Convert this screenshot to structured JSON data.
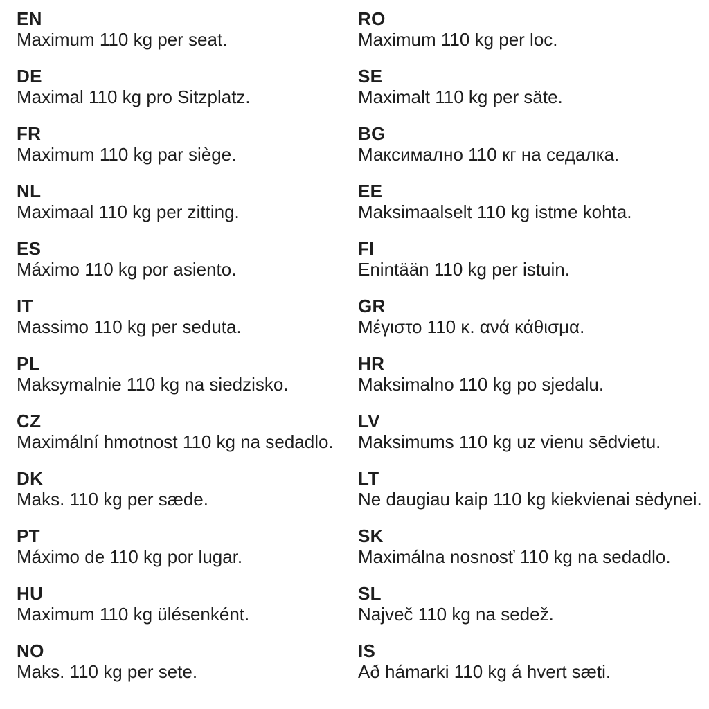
{
  "page": {
    "background_color": "#ffffff",
    "text_color": "#1e1e1e",
    "description": "Multilingual weight-limit notice sheet"
  },
  "entries": {
    "left": [
      {
        "code": "EN",
        "text": "Maximum 110 kg per seat."
      },
      {
        "code": "DE",
        "text": "Maximal 110 kg pro Sitzplatz."
      },
      {
        "code": "FR",
        "text": "Maximum 110 kg par siège."
      },
      {
        "code": "NL",
        "text": "Maximaal 110 kg per zitting."
      },
      {
        "code": "ES",
        "text": "Máximo 110 kg por asiento."
      },
      {
        "code": "IT",
        "text": "Massimo 110 kg per seduta."
      },
      {
        "code": "PL",
        "text": "Maksymalnie 110 kg na siedzisko."
      },
      {
        "code": "CZ",
        "text": "Maximální hmotnost 110 kg na sedadlo."
      },
      {
        "code": "DK",
        "text": "Maks. 110 kg per sæde."
      },
      {
        "code": "PT",
        "text": "Máximo de 110 kg por lugar."
      },
      {
        "code": "HU",
        "text": "Maximum 110 kg ülésenként."
      },
      {
        "code": "NO",
        "text": "Maks. 110 kg per sete."
      }
    ],
    "right": [
      {
        "code": "RO",
        "text": "Maximum 110 kg per loc."
      },
      {
        "code": "SE",
        "text": "Maximalt 110 kg per säte."
      },
      {
        "code": "BG",
        "text": "Максимално 110 кг на седалка."
      },
      {
        "code": "EE",
        "text": "Maksimaalselt 110 kg istme kohta."
      },
      {
        "code": "FI",
        "text": "Enintään 110 kg per istuin."
      },
      {
        "code": "GR",
        "text": "Μέγιστο 110 κ. ανά κάθισμα."
      },
      {
        "code": "HR",
        "text": "Maksimalno 110 kg po sjedalu."
      },
      {
        "code": "LV",
        "text": "Maksimums 110 kg uz vienu sēdvietu."
      },
      {
        "code": "LT",
        "text": "Ne daugiau kaip 110 kg kiekvienai sėdynei."
      },
      {
        "code": "SK",
        "text": "Maximálna nosnosť 110 kg na sedadlo."
      },
      {
        "code": "SL",
        "text": "Največ 110 kg na sedež."
      },
      {
        "code": "IS",
        "text": "Að hámarki 110 kg á hvert sæti."
      }
    ]
  }
}
